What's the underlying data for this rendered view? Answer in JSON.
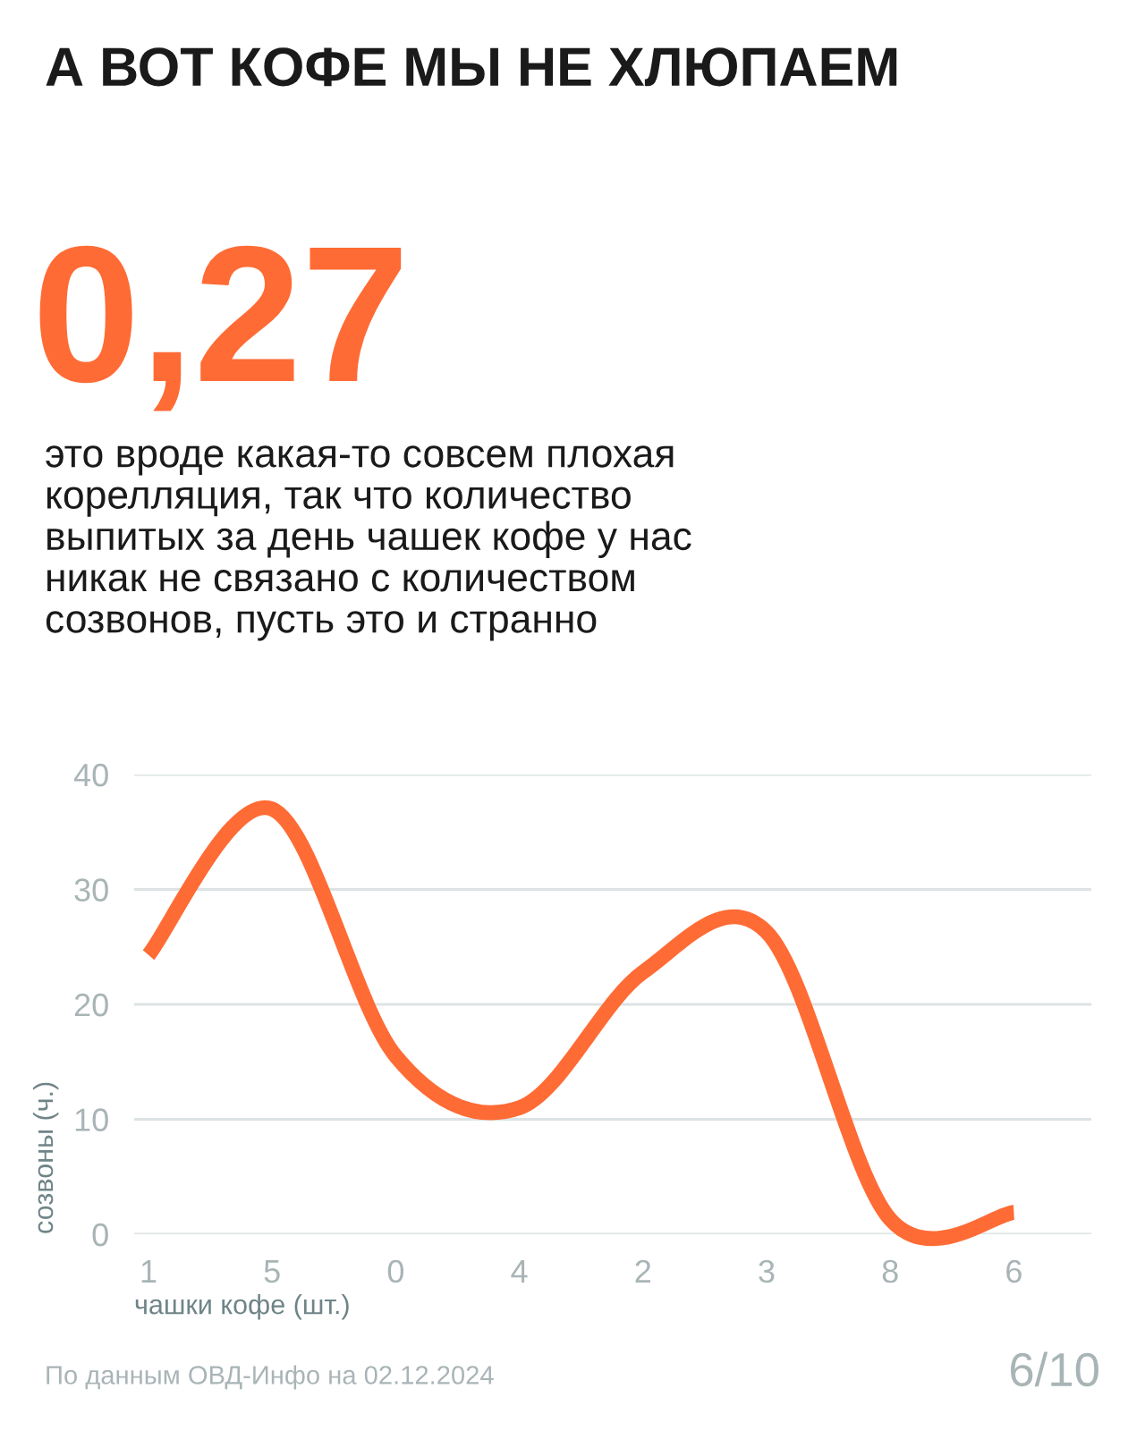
{
  "chart_data": {
    "type": "line",
    "title": "А ВОТ КОФЕ МЫ НЕ ХЛЮПАЕМ",
    "subtitle": "0,27",
    "annotations": [
      "это вроде какая-то совсем плохая\nкорелляция, так что количество\nвыпитых за день чашек кофе у нас\nникак не связано с количеством\nсозвонов, пусть это и странно",
      "По данным ОВД-Инфо на 02.12.2024",
      "6/10"
    ],
    "xlabel": "чашки кофе (шт.)",
    "ylabel": "созвоны (ч.)",
    "categories": [
      "1",
      "5",
      "0",
      "4",
      "2",
      "3",
      "8",
      "6"
    ],
    "series": [
      {
        "color": "#ff6b35",
        "values": [
          24.3,
          37,
          15.5,
          11,
          22.8,
          26.3,
          1.3,
          1.9
        ]
      }
    ],
    "ylim": [
      0,
      40
    ],
    "yticks": [
      0,
      10,
      20,
      30,
      40
    ],
    "grid": "y",
    "legend": false,
    "marker": "none",
    "line_style": "solid"
  }
}
